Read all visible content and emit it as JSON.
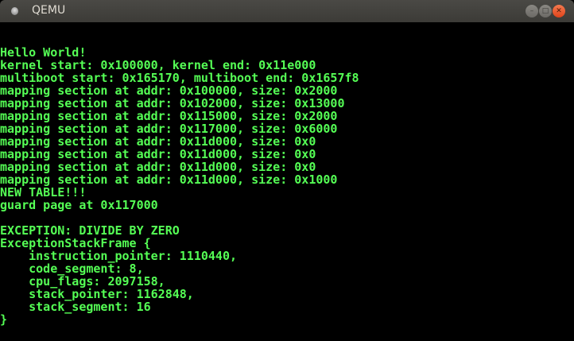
{
  "window": {
    "title": "QEMU",
    "icons": [
      "app-icon",
      "minimize-icon",
      "maximize-icon",
      "close-icon"
    ]
  },
  "colors": {
    "text": "#55ff55",
    "background": "#000000"
  },
  "console": {
    "lines": [
      "Hello World!",
      "kernel start: 0x100000, kernel end: 0x11e000",
      "multiboot start: 0x165170, multiboot end: 0x1657f8",
      "mapping section at addr: 0x100000, size: 0x2000",
      "mapping section at addr: 0x102000, size: 0x13000",
      "mapping section at addr: 0x115000, size: 0x2000",
      "mapping section at addr: 0x117000, size: 0x6000",
      "mapping section at addr: 0x11d000, size: 0x0",
      "mapping section at addr: 0x11d000, size: 0x0",
      "mapping section at addr: 0x11d000, size: 0x0",
      "mapping section at addr: 0x11d000, size: 0x1000",
      "NEW TABLE!!!",
      "guard page at 0x117000",
      "",
      "EXCEPTION: DIVIDE BY ZERO",
      "ExceptionStackFrame {",
      "    instruction_pointer: 1110440,",
      "    code_segment: 8,",
      "    cpu_flags: 2097158,",
      "    stack_pointer: 1162848,",
      "    stack_segment: 16",
      "}"
    ]
  }
}
